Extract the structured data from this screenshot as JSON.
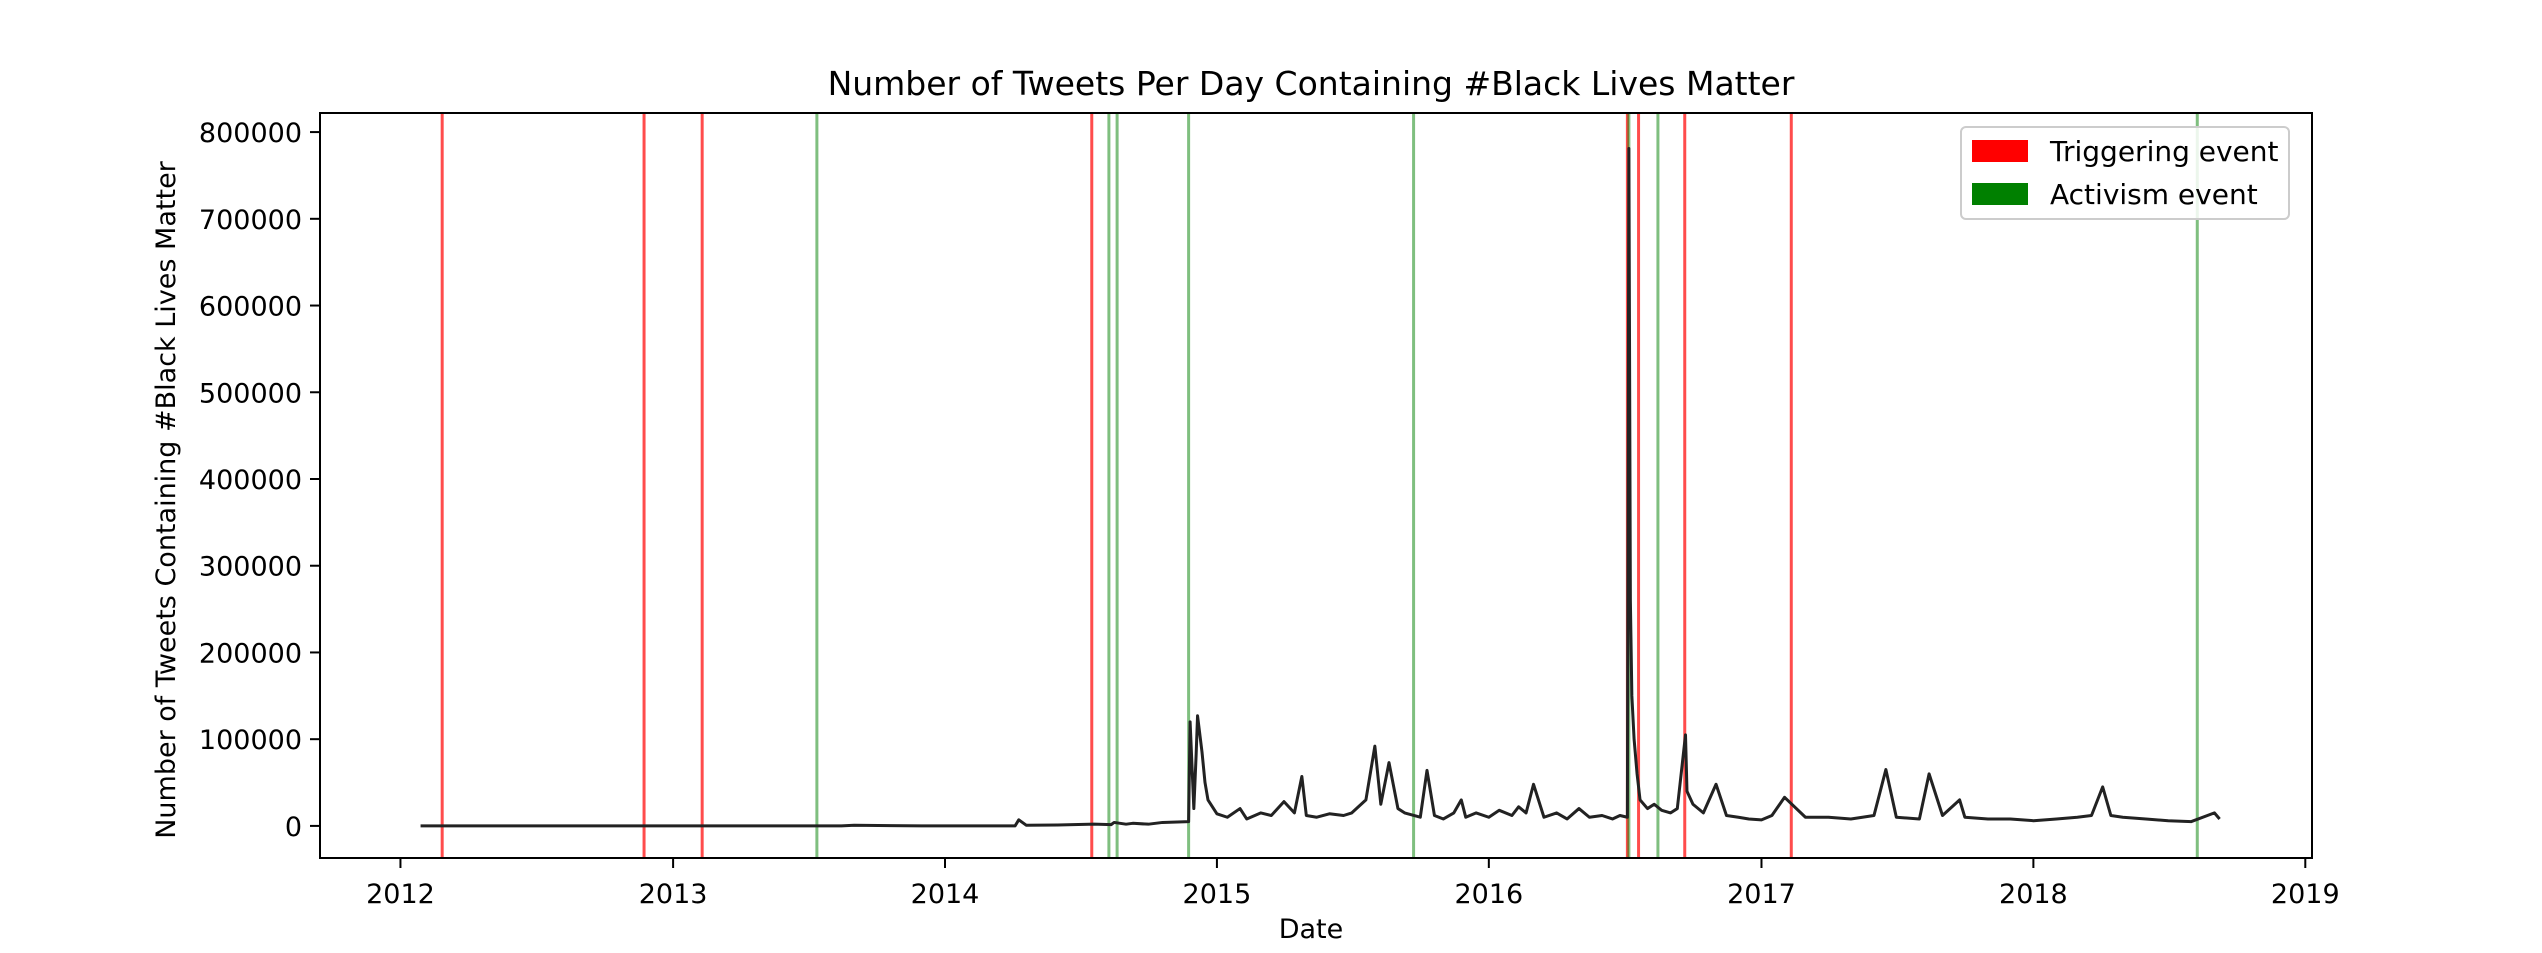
{
  "chart_data": {
    "type": "line",
    "title": "Number of Tweets Per Day Containing #Black Lives Matter",
    "xlabel": "Date",
    "ylabel": "Number of Tweets Containing #Black Lives Matter",
    "xlim": [
      "2011-09-15",
      "2019-01-10"
    ],
    "ylim": [
      -37000,
      822000
    ],
    "x_ticks": [
      "2012",
      "2013",
      "2014",
      "2015",
      "2016",
      "2017",
      "2018",
      "2019"
    ],
    "y_ticks": [
      0,
      100000,
      200000,
      300000,
      400000,
      500000,
      600000,
      700000,
      800000
    ],
    "grid": false,
    "legend_position": "top-right",
    "colors": {
      "triggering": "#ff0000",
      "activism": "#008000",
      "line": "#222222"
    },
    "legend": [
      {
        "label": "Triggering event",
        "color": "#ff0000"
      },
      {
        "label": "Activism event",
        "color": "#008000"
      }
    ],
    "triggering_events": [
      "2012-02-26",
      "2012-11-23",
      "2013-02-09",
      "2014-07-17",
      "2016-07-05",
      "2016-07-20",
      "2016-09-20",
      "2017-02-10"
    ],
    "activism_events": [
      "2013-07-13",
      "2014-08-09",
      "2014-08-20",
      "2014-11-24",
      "2015-09-22",
      "2016-07-07",
      "2016-08-15",
      "2018-08-09"
    ],
    "series": [
      {
        "x": [
          "2012-01-28",
          "2012-06-01",
          "2012-11-01",
          "2013-03-01",
          "2013-06-01",
          "2013-08-15",
          "2013-09-01",
          "2013-12-01",
          "2014-03-01",
          "2014-04-05",
          "2014-04-10",
          "2014-04-20",
          "2014-06-01",
          "2014-07-20",
          "2014-08-12",
          "2014-08-16",
          "2014-09-01",
          "2014-09-10",
          "2014-10-01",
          "2014-10-20",
          "2014-11-24",
          "2014-11-26",
          "2014-12-01",
          "2014-12-04",
          "2014-12-06",
          "2014-12-12",
          "2014-12-16",
          "2014-12-20",
          "2015-01-01",
          "2015-01-15",
          "2015-02-01",
          "2015-02-10",
          "2015-03-01",
          "2015-03-15",
          "2015-04-01",
          "2015-04-15",
          "2015-04-25",
          "2015-05-01",
          "2015-05-15",
          "2015-06-01",
          "2015-06-20",
          "2015-07-01",
          "2015-07-20",
          "2015-08-01",
          "2015-08-09",
          "2015-08-20",
          "2015-09-01",
          "2015-09-10",
          "2015-10-01",
          "2015-10-10",
          "2015-10-20",
          "2015-11-01",
          "2015-11-15",
          "2015-11-25",
          "2015-12-01",
          "2015-12-15",
          "2016-01-01",
          "2016-01-15",
          "2016-02-01",
          "2016-02-10",
          "2016-02-20",
          "2016-03-01",
          "2016-03-15",
          "2016-04-01",
          "2016-04-15",
          "2016-05-01",
          "2016-05-15",
          "2016-06-01",
          "2016-06-15",
          "2016-06-25",
          "2016-07-05",
          "2016-07-07",
          "2016-07-09",
          "2016-07-11",
          "2016-07-14",
          "2016-07-18",
          "2016-07-22",
          "2016-08-01",
          "2016-08-10",
          "2016-08-20",
          "2016-09-01",
          "2016-09-10",
          "2016-09-21",
          "2016-09-23",
          "2016-10-01",
          "2016-10-15",
          "2016-11-01",
          "2016-11-15",
          "2016-12-01",
          "2016-12-15",
          "2017-01-01",
          "2017-01-15",
          "2017-02-01",
          "2017-03-01",
          "2017-04-01",
          "2017-05-01",
          "2017-06-01",
          "2017-06-17",
          "2017-07-01",
          "2017-08-01",
          "2017-08-14",
          "2017-09-01",
          "2017-09-24",
          "2017-10-01",
          "2017-11-01",
          "2017-12-01",
          "2018-01-01",
          "2018-02-01",
          "2018-03-01",
          "2018-03-20",
          "2018-04-04",
          "2018-04-15",
          "2018-05-01",
          "2018-06-01",
          "2018-07-01",
          "2018-08-01",
          "2018-09-01",
          "2018-09-08"
        ],
        "y": [
          0,
          0,
          0,
          0,
          0,
          0,
          800,
          0,
          0,
          0,
          7000,
          800,
          1000,
          2000,
          1500,
          4000,
          2000,
          3000,
          2000,
          4000,
          5000,
          120000,
          20000,
          80000,
          127000,
          85000,
          50000,
          30000,
          14000,
          10000,
          20000,
          8000,
          15000,
          12000,
          28000,
          15000,
          57000,
          12000,
          10000,
          14000,
          12000,
          15000,
          30000,
          92000,
          25000,
          73000,
          20000,
          15000,
          10000,
          64000,
          12000,
          8000,
          15000,
          30000,
          10000,
          15000,
          10000,
          18000,
          12000,
          22000,
          15000,
          48000,
          10000,
          15000,
          8000,
          20000,
          10000,
          12000,
          8000,
          12000,
          10000,
          781000,
          260000,
          150000,
          100000,
          60000,
          30000,
          20000,
          25000,
          18000,
          15000,
          20000,
          105000,
          40000,
          25000,
          15000,
          48000,
          12000,
          10000,
          8000,
          7000,
          12000,
          33000,
          10000,
          10000,
          8000,
          12000,
          65000,
          10000,
          8000,
          60000,
          12000,
          30000,
          10000,
          8000,
          8000,
          6000,
          8000,
          10000,
          12000,
          45000,
          12000,
          10000,
          8000,
          6000,
          5000,
          15000,
          8000
        ]
      }
    ]
  }
}
